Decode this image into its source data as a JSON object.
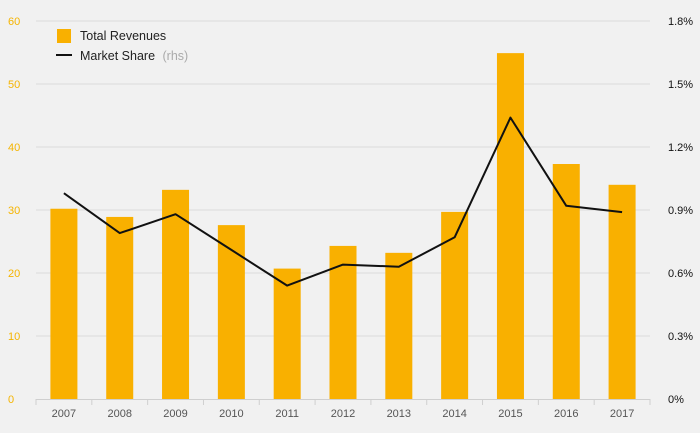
{
  "chart_data": {
    "type": "bar",
    "categories": [
      "2007",
      "2008",
      "2009",
      "2010",
      "2011",
      "2012",
      "2013",
      "2014",
      "2015",
      "2016",
      "2017"
    ],
    "series": [
      {
        "name": "Total Revenues",
        "type": "bar",
        "axis": "left",
        "color": "#f9b000",
        "values": [
          30.2,
          28.9,
          33.2,
          27.6,
          20.7,
          24.3,
          23.2,
          29.7,
          54.9,
          37.3,
          34.0
        ]
      },
      {
        "name": "Market Share",
        "name_suffix": "(rhs)",
        "type": "line",
        "axis": "right",
        "color": "#111111",
        "values": [
          0.98,
          0.79,
          0.88,
          0.71,
          0.54,
          0.64,
          0.63,
          0.77,
          1.34,
          0.92,
          0.89
        ]
      }
    ],
    "y_left": {
      "min": 0,
      "max": 60,
      "ticks": [
        "0",
        "10",
        "20",
        "30",
        "40",
        "50",
        "60"
      ],
      "color": "#f5b400"
    },
    "y_right": {
      "min": 0,
      "max": 1.8,
      "ticks": [
        "0%",
        "0.3%",
        "0.6%",
        "0.9%",
        "1.2%",
        "1.5%",
        "1.8%"
      ]
    },
    "grid": true,
    "legend_position": "top-left"
  }
}
